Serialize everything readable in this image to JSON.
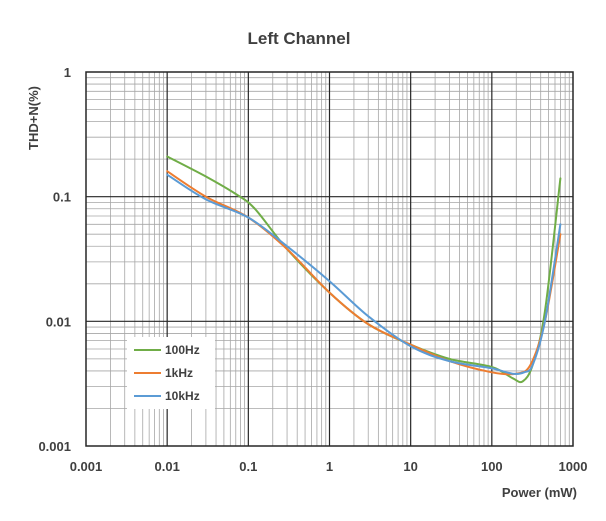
{
  "chart_data": {
    "type": "line",
    "title": "Left Channel",
    "xlabel": "Power (mW)",
    "ylabel": "THD+N(%)",
    "x_scale": "log",
    "y_scale": "log",
    "xlim": [
      0.001,
      1000
    ],
    "ylim": [
      0.001,
      1
    ],
    "x_ticks": [
      "0.001",
      "0.01",
      "0.1",
      "1",
      "10",
      "100",
      "1000"
    ],
    "y_ticks": [
      "0.001",
      "0.01",
      "0.1",
      "1"
    ],
    "grid": true,
    "legend_position": "bottom-left",
    "series": [
      {
        "name": "100Hz",
        "color": "#70AD47",
        "x": [
          0.01,
          0.03,
          0.07,
          0.12,
          0.3,
          1,
          3,
          10,
          30,
          100,
          180,
          240,
          320,
          450,
          700
        ],
        "y": [
          0.21,
          0.145,
          0.105,
          0.08,
          0.038,
          0.017,
          0.0095,
          0.0065,
          0.005,
          0.0043,
          0.0035,
          0.0033,
          0.0045,
          0.012,
          0.14
        ]
      },
      {
        "name": "1kHz",
        "color": "#ED7D31",
        "x": [
          0.01,
          0.03,
          0.1,
          0.3,
          1,
          3,
          10,
          30,
          100,
          200,
          300,
          450,
          700
        ],
        "y": [
          0.16,
          0.1,
          0.068,
          0.038,
          0.017,
          0.0095,
          0.0065,
          0.0048,
          0.0039,
          0.0038,
          0.0045,
          0.01,
          0.05
        ]
      },
      {
        "name": "10kHz",
        "color": "#5B9BD5",
        "x": [
          0.01,
          0.03,
          0.1,
          0.3,
          1,
          3,
          10,
          30,
          100,
          180,
          250,
          320,
          450,
          700
        ],
        "y": [
          0.15,
          0.095,
          0.068,
          0.04,
          0.021,
          0.011,
          0.0063,
          0.0048,
          0.0042,
          0.0038,
          0.0039,
          0.0045,
          0.01,
          0.06
        ]
      }
    ]
  }
}
